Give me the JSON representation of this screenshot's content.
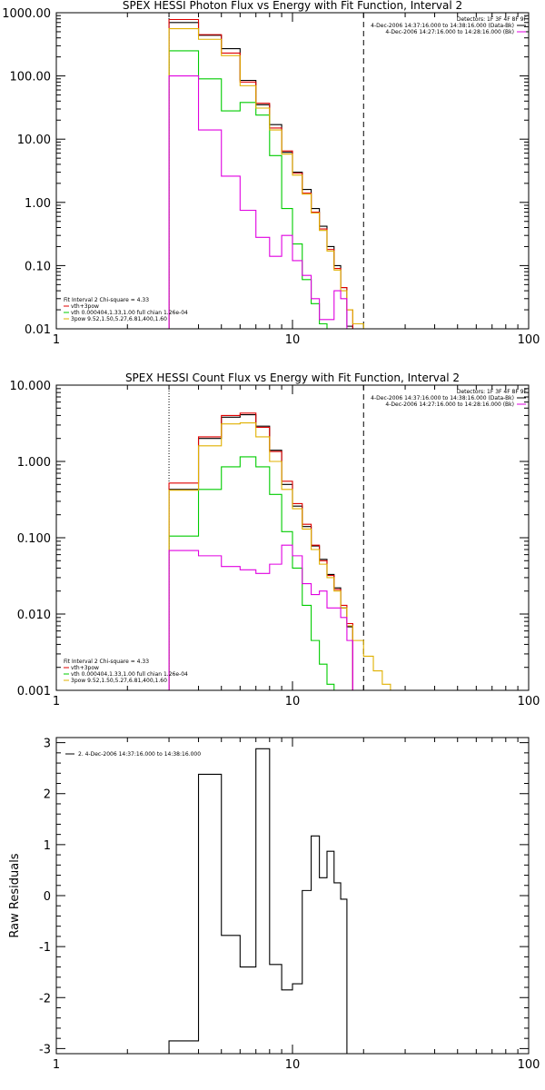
{
  "chart_data": [
    {
      "type": "line",
      "title": "SPEX HESSI Photon Flux vs Energy with Fit Function, Interval 2",
      "xscale": "log",
      "yscale": "log",
      "xlim": [
        1,
        100
      ],
      "ylim": [
        0.01,
        1000
      ],
      "x_ticks": [
        "1",
        "10",
        "100"
      ],
      "y_ticks": [
        "0.01",
        "0.10",
        "1.00",
        "10.00",
        "100.00",
        "1000.00"
      ],
      "detectors": "Detectors: 1F 3F 4F 8F 9F",
      "legend_right": [
        {
          "label": "4-Dec-2006 14:37:16.000 to 14:38:16.000 (Data-Bk)",
          "color": "#000000"
        },
        {
          "label": "4-Dec-2006 14:27:16.000 to 14:28:16.000 (Bk)",
          "color": "#e000e0"
        }
      ],
      "legend_left": [
        {
          "label": "Fit Interval 2   Chi-square = 4.33",
          "color": ""
        },
        {
          "label": "vth+3pow",
          "color": "#e00000"
        },
        {
          "label": "vth 0.000404,1.33,1.00  full chian 1.26e-04",
          "color": "#00cc00"
        },
        {
          "label": "3pow 9.52,1.50,5.27,6.81,400,1.60",
          "color": "#e0b000"
        }
      ],
      "vlines": [
        {
          "x": 3,
          "style": "dotted"
        },
        {
          "x": 20,
          "style": "dashed"
        }
      ],
      "bin_edges": [
        3,
        4,
        5,
        6,
        7,
        8,
        9,
        10,
        11,
        12,
        13,
        14,
        15,
        16,
        17,
        18,
        20,
        22,
        24,
        26
      ],
      "series": [
        {
          "name": "Data-Bk",
          "color": "#000000",
          "values": [
            700,
            440,
            270,
            85,
            35,
            17,
            6.2,
            3.0,
            1.6,
            0.8,
            0.42,
            0.2,
            0.1,
            0.045,
            0.011
          ]
        },
        {
          "name": "vth+3pow",
          "color": "#e00000",
          "values": [
            780,
            450,
            230,
            80,
            37,
            15,
            6.5,
            2.9,
            1.4,
            0.7,
            0.38,
            0.18,
            0.09,
            0.045,
            0.02
          ]
        },
        {
          "name": "vth",
          "color": "#00cc00",
          "values": [
            250,
            90,
            28,
            38,
            24,
            5.5,
            0.8,
            0.22,
            0.06,
            0.025,
            0.012
          ]
        },
        {
          "name": "3pow",
          "color": "#e0b000",
          "values": [
            560,
            380,
            210,
            70,
            31,
            14,
            5.8,
            2.7,
            1.35,
            0.68,
            0.36,
            0.17,
            0.085,
            0.04,
            0.02,
            0.012
          ]
        },
        {
          "name": "Bk",
          "color": "#e000e0",
          "values": [
            100,
            14,
            2.6,
            0.75,
            0.28,
            0.14,
            0.3,
            0.12,
            0.07,
            0.03,
            0.014,
            0.014,
            0.04,
            0.03
          ]
        }
      ]
    },
    {
      "type": "line",
      "title": "SPEX HESSI Count Flux vs Energy with Fit Function, Interval 2",
      "xscale": "log",
      "yscale": "log",
      "xlim": [
        1,
        100
      ],
      "ylim": [
        0.001,
        10
      ],
      "x_ticks": [
        "1",
        "10",
        "100"
      ],
      "y_ticks": [
        "0.001",
        "0.010",
        "0.100",
        "1.000",
        "10.000"
      ],
      "detectors": "Detectors: 1F 3F 4F 8F 9F",
      "legend_right": [
        {
          "label": "4-Dec-2006 14:37:16.000 to 14:38:16.000 (Data-Bk)",
          "color": "#000000"
        },
        {
          "label": "4-Dec-2006 14:27:16.000 to 14:28:16.000 (Bk)",
          "color": "#e000e0"
        }
      ],
      "legend_left": [
        {
          "label": "Fit Interval 2   Chi-square = 4.33",
          "color": ""
        },
        {
          "label": "vth+3pow",
          "color": "#e00000"
        },
        {
          "label": "vth 0.000404,1.33,1.00  full chian 1.26e-04",
          "color": "#00cc00"
        },
        {
          "label": "3pow 9.52,1.50,5.27,6.81,400,1.60",
          "color": "#e0b000"
        }
      ],
      "vlines": [
        {
          "x": 3,
          "style": "dotted"
        },
        {
          "x": 20,
          "style": "dashed"
        }
      ],
      "bin_edges": [
        3,
        4,
        5,
        6,
        7,
        8,
        9,
        10,
        11,
        12,
        13,
        14,
        15,
        16,
        17,
        18,
        20,
        22,
        24,
        26,
        28
      ],
      "series": [
        {
          "name": "Data-Bk",
          "color": "#000000",
          "values": [
            0.43,
            2.0,
            3.8,
            4.1,
            2.9,
            1.4,
            0.5,
            0.26,
            0.14,
            0.078,
            0.052,
            0.033,
            0.022,
            0.012,
            0.0068
          ]
        },
        {
          "name": "vth+3pow",
          "color": "#e00000",
          "values": [
            0.52,
            2.1,
            4.0,
            4.3,
            2.8,
            1.35,
            0.55,
            0.28,
            0.15,
            0.08,
            0.05,
            0.032,
            0.021,
            0.013,
            0.0075
          ]
        },
        {
          "name": "vth",
          "color": "#00cc00",
          "values": [
            0.105,
            0.43,
            0.85,
            1.15,
            0.85,
            0.37,
            0.12,
            0.04,
            0.013,
            0.0045,
            0.0022,
            0.0012
          ]
        },
        {
          "name": "3pow",
          "color": "#e0b000",
          "values": [
            0.42,
            1.6,
            3.1,
            3.2,
            2.1,
            1.0,
            0.43,
            0.24,
            0.13,
            0.07,
            0.045,
            0.03,
            0.02,
            0.012,
            0.007,
            0.0045,
            0.0028,
            0.0018,
            0.0012,
            0.0009
          ]
        },
        {
          "name": "Bk",
          "color": "#e000e0",
          "values": [
            0.068,
            0.058,
            0.042,
            0.038,
            0.034,
            0.045,
            0.08,
            0.058,
            0.025,
            0.018,
            0.02,
            0.012,
            0.012,
            0.009,
            0.0045
          ]
        }
      ]
    },
    {
      "type": "line",
      "title": "",
      "xscale": "log",
      "yscale": "linear",
      "xlim": [
        1,
        100
      ],
      "ylim": [
        -3.1,
        3.1
      ],
      "x_ticks": [
        "1",
        "10",
        "100"
      ],
      "y_ticks": [
        "-3",
        "-2",
        "-1",
        "0",
        "1",
        "2",
        "3"
      ],
      "ylabel": "Raw Residuals",
      "legend": {
        "label": "2.  4-Dec-2006 14:37:16.000 to 14:38:16.000",
        "color": "#000000"
      },
      "bin_edges": [
        3,
        4,
        5,
        6,
        7,
        8,
        9,
        10,
        11,
        12,
        13,
        14,
        15,
        16,
        17,
        18,
        20
      ],
      "series": [
        {
          "name": "",
          "color": "#000000",
          "values": [
            -2.85,
            2.38,
            -0.78,
            -1.4,
            2.88,
            -1.35,
            -1.85,
            -1.73,
            0.1,
            1.17,
            0.35,
            0.87,
            0.25,
            -0.07,
            -3.1
          ]
        }
      ]
    }
  ]
}
